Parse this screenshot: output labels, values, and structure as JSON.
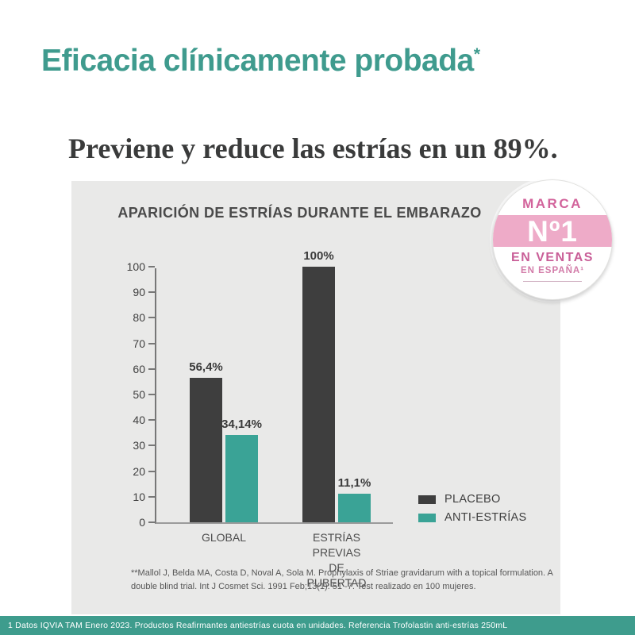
{
  "header": {
    "title": "Eficacia clínicamente probada",
    "asterisk": "*",
    "subtitle": "Previene y reduce las estrías en un 89%."
  },
  "badge": {
    "top": "MARCA",
    "number": "Nº1",
    "middle": "EN VENTAS",
    "bottom": "EN ESPAÑA¹"
  },
  "chart_data": {
    "type": "bar",
    "title": "APARICIÓN DE ESTRÍAS DURANTE EL EMBARAZO",
    "categories": [
      "GLOBAL",
      "ESTRÍAS PREVIAS\nDE PUBERTAD"
    ],
    "series": [
      {
        "name": "PLACEBO",
        "color": "#3E3E3E",
        "values": [
          56.4,
          100
        ],
        "labels": [
          "56,4%",
          "100%"
        ]
      },
      {
        "name": "ANTI-ESTRÍAS",
        "color": "#3AA396",
        "values": [
          34.14,
          11.1
        ],
        "labels": [
          "34,14%",
          "11,1%"
        ]
      }
    ],
    "xlabel": "",
    "ylabel": "",
    "ylim": [
      0,
      100
    ],
    "ytick_step": 10,
    "grid": false,
    "legend_position": "bottom-right"
  },
  "footnote": "**Mallol J, Belda MA, Costa D, Noval A, Sola M. Prophylaxis of Striae gravidarum with a topical formulation. A double blind trial. Int J Cosmet Sci. 1991 Feb;13(1): 51 -7. Test realizado en 100 mujeres.",
  "bottom_bar": "1 Datos IQVIA TAM Enero 2023. Productos Reafirmantes antiestrías cuota en unidades. Referencia Trofolastin anti-estrías 250mL",
  "colors": {
    "accent_teal": "#3F9B8E",
    "bar_dark": "#3E3E3E",
    "bar_teal": "#3AA396",
    "panel_bg": "#E9E9E8",
    "badge_band_pink": "#EEABC8",
    "badge_text_pink": "#D2639B",
    "bottom_bar_bg": "#3E9C8D"
  }
}
